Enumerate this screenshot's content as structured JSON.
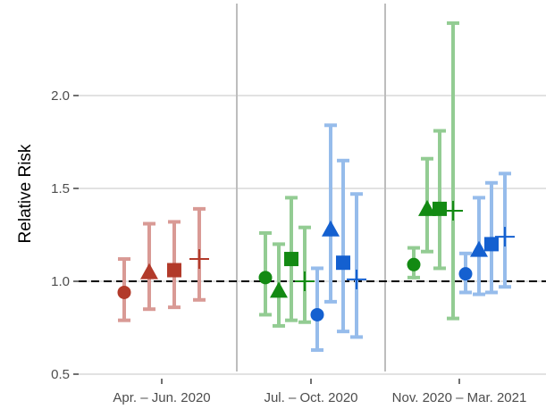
{
  "chart_data": {
    "type": "scatter",
    "ylabel": "Relative Risk",
    "xlabel": "",
    "ylim": [
      0.5,
      2.4
    ],
    "yticks": [
      0.5,
      1.0,
      1.5,
      2.0
    ],
    "ytick_labels": [
      "0.5",
      "1.0",
      "1.5",
      "2.0"
    ],
    "reference_line": 1.0,
    "grid": true,
    "legend": "none",
    "periods": [
      {
        "label": "Apr. – Jun. 2020"
      },
      {
        "label": "Jul. – Oct. 2020"
      },
      {
        "label": "Nov. 2020 – Mar. 2021"
      }
    ],
    "colors": {
      "red": "#b23a2a",
      "red_light": "#d99a95",
      "green": "#138a13",
      "green_light": "#93cc93",
      "blue": "#1460d0",
      "blue_light": "#96bceb"
    },
    "points": [
      {
        "period": 0,
        "color": "red",
        "shape": "circle",
        "estimate": 0.94,
        "lower": 0.79,
        "upper": 1.12
      },
      {
        "period": 0,
        "color": "red",
        "shape": "triangle",
        "estimate": 1.05,
        "lower": 0.85,
        "upper": 1.31
      },
      {
        "period": 0,
        "color": "red",
        "shape": "square",
        "estimate": 1.06,
        "lower": 0.86,
        "upper": 1.32
      },
      {
        "period": 0,
        "color": "red",
        "shape": "plus",
        "estimate": 1.12,
        "lower": 0.9,
        "upper": 1.39
      },
      {
        "period": 1,
        "color": "green",
        "shape": "circle",
        "estimate": 1.02,
        "lower": 0.82,
        "upper": 1.26
      },
      {
        "period": 1,
        "color": "green",
        "shape": "triangle",
        "estimate": 0.95,
        "lower": 0.76,
        "upper": 1.2
      },
      {
        "period": 1,
        "color": "green",
        "shape": "square",
        "estimate": 1.12,
        "lower": 0.79,
        "upper": 1.45
      },
      {
        "period": 1,
        "color": "green",
        "shape": "plus",
        "estimate": 1.0,
        "lower": 0.78,
        "upper": 1.29
      },
      {
        "period": 1,
        "color": "blue",
        "shape": "circle",
        "estimate": 0.82,
        "lower": 0.63,
        "upper": 1.07
      },
      {
        "period": 1,
        "color": "blue",
        "shape": "triangle",
        "estimate": 1.28,
        "lower": 0.89,
        "upper": 1.84
      },
      {
        "period": 1,
        "color": "blue",
        "shape": "square",
        "estimate": 1.1,
        "lower": 0.73,
        "upper": 1.65
      },
      {
        "period": 1,
        "color": "blue",
        "shape": "plus",
        "estimate": 1.01,
        "lower": 0.7,
        "upper": 1.47
      },
      {
        "period": 2,
        "color": "green",
        "shape": "circle",
        "estimate": 1.09,
        "lower": 1.02,
        "upper": 1.18
      },
      {
        "period": 2,
        "color": "green",
        "shape": "triangle",
        "estimate": 1.39,
        "lower": 1.16,
        "upper": 1.66
      },
      {
        "period": 2,
        "color": "green",
        "shape": "square",
        "estimate": 1.39,
        "lower": 1.07,
        "upper": 1.81
      },
      {
        "period": 2,
        "color": "green",
        "shape": "plus",
        "estimate": 1.38,
        "lower": 0.8,
        "upper": 2.39
      },
      {
        "period": 2,
        "color": "blue",
        "shape": "circle",
        "estimate": 1.04,
        "lower": 0.94,
        "upper": 1.15
      },
      {
        "period": 2,
        "color": "blue",
        "shape": "triangle",
        "estimate": 1.17,
        "lower": 0.93,
        "upper": 1.45
      },
      {
        "period": 2,
        "color": "blue",
        "shape": "square",
        "estimate": 1.2,
        "lower": 0.94,
        "upper": 1.53
      },
      {
        "period": 2,
        "color": "blue",
        "shape": "plus",
        "estimate": 1.24,
        "lower": 0.97,
        "upper": 1.58
      }
    ]
  }
}
